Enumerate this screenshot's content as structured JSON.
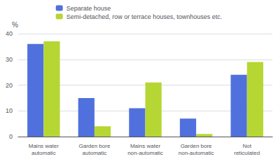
{
  "chart_data": {
    "type": "bar",
    "categories": [
      "Mains water\nautomatic",
      "Garden bore\nautomatic",
      "Mains water\nnon-automatic",
      "Garden bore\nnon-automatic",
      "Not\nreticulated"
    ],
    "series": [
      {
        "name": "Separate house",
        "values": [
          36,
          15,
          11,
          7,
          24
        ]
      },
      {
        "name": "Semi-detached, row or terrace houses, townhouses etc.",
        "values": [
          37,
          4,
          21,
          1,
          29
        ]
      }
    ],
    "ylabel": "%",
    "ylim": [
      0,
      40
    ],
    "yticks": [
      0,
      10,
      20,
      30,
      40
    ],
    "grid": true,
    "legend": "upper center"
  }
}
